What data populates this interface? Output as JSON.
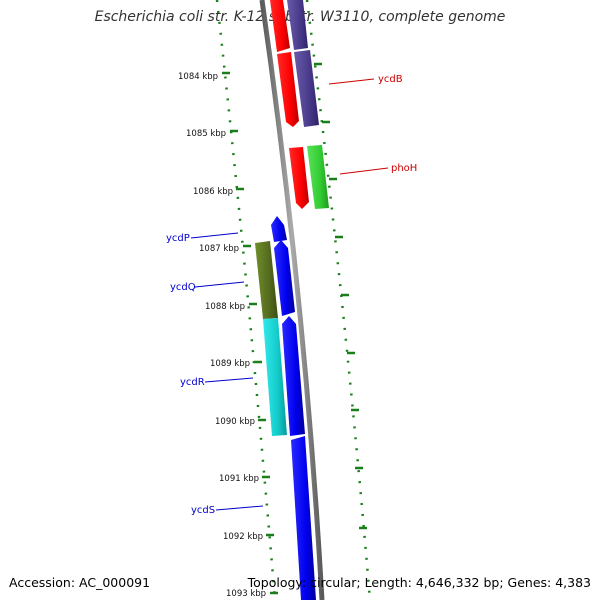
{
  "title": "Escherichia coli str. K-12 substr. W3110, complete genome",
  "footer": {
    "accession": "Accession: AC_000091",
    "summary": "Topology: circular; Length: 4,646,332 bp; Genes: 4,383"
  },
  "colors": {
    "tick": "#1a7f1a",
    "backbone": "#888888",
    "label_red": "#cc0000",
    "label_blue": "#0000cc"
  },
  "ticks": [
    {
      "label": "1084 kbp"
    },
    {
      "label": "1085 kbp"
    },
    {
      "label": "1086 kbp"
    },
    {
      "label": "1087 kbp"
    },
    {
      "label": "1088 kbp"
    },
    {
      "label": "1089 kbp"
    },
    {
      "label": "1090 kbp"
    },
    {
      "label": "1091 kbp"
    },
    {
      "label": "1092 kbp"
    },
    {
      "label": "1093 kbp"
    }
  ],
  "genes": [
    {
      "label": "ycdB",
      "label_color": "red"
    },
    {
      "label": "phoH",
      "label_color": "red"
    },
    {
      "label": "ycdP",
      "label_color": "blue"
    },
    {
      "label": "ycdQ",
      "label_color": "blue"
    },
    {
      "label": "ycdR",
      "label_color": "blue"
    },
    {
      "label": "ycdS",
      "label_color": "blue"
    }
  ]
}
